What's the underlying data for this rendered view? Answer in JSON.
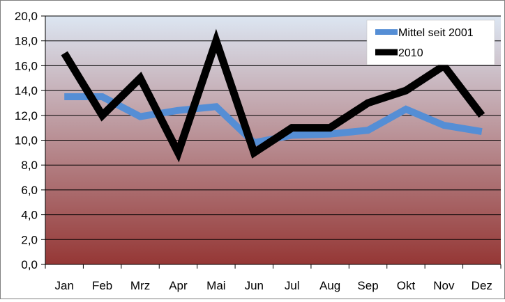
{
  "chart_data": {
    "type": "line",
    "categories": [
      "Jan",
      "Feb",
      "Mrz",
      "Apr",
      "Mai",
      "Jun",
      "Jul",
      "Aug",
      "Sep",
      "Okt",
      "Nov",
      "Dez"
    ],
    "series": [
      {
        "name": "Mittel seit 2001",
        "color": "#558ed5",
        "values": [
          13.5,
          13.5,
          11.9,
          12.4,
          12.7,
          9.8,
          10.4,
          10.5,
          10.8,
          12.5,
          11.2,
          10.7
        ]
      },
      {
        "name": "2010",
        "color": "#000000",
        "values": [
          17,
          12,
          15,
          9,
          18,
          9,
          11,
          11,
          13,
          14,
          16,
          12
        ]
      }
    ],
    "ylim": [
      0,
      20
    ],
    "yticks": [
      "0,0",
      "2,0",
      "4,0",
      "6,0",
      "8,0",
      "10,0",
      "12,0",
      "14,0",
      "16,0",
      "18,0",
      "20,0"
    ],
    "grid": true,
    "legend_position": "top-right",
    "background_gradient": [
      "#dce6f2",
      "#953735"
    ],
    "title": "",
    "xlabel": "",
    "ylabel": ""
  }
}
